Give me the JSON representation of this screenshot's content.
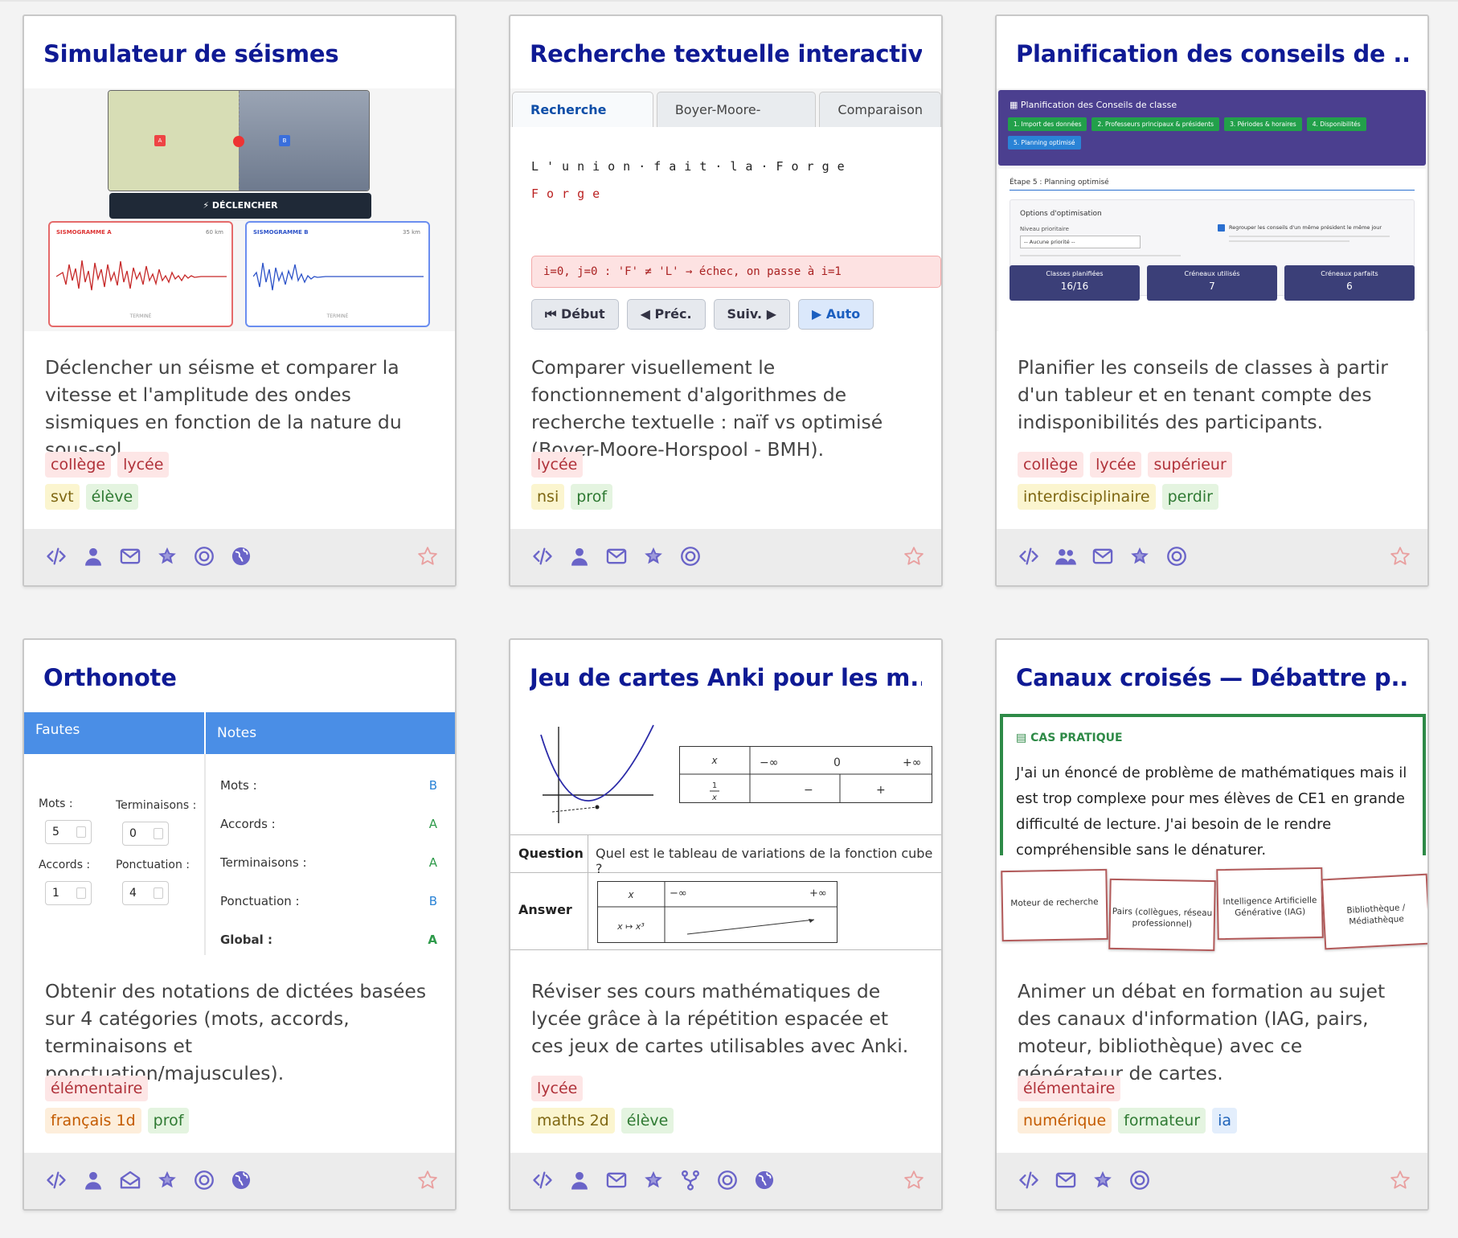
{
  "cards": [
    {
      "title": "Simulateur de séismes",
      "description": "Déclencher un séisme et comparer la vitesse et l'amplitude des ondes sismiques en fonction de la nature du sous-sol.",
      "tag_row1": [
        "collège",
        "lycée"
      ],
      "tag_row2": [
        "svt",
        "élève"
      ],
      "preview": {
        "marker_a": "A",
        "marker_b": "B",
        "button": "⚡ DÉCLENCHER",
        "gram_a_title": "SISMOGRAMME A",
        "gram_a_dist": "60 km",
        "gram_b_title": "SISMOGRAMME B",
        "gram_b_dist": "35 km",
        "gram_status": "TERMINÉ"
      },
      "footer_icons": [
        "code-icon",
        "person-icon",
        "mail-icon",
        "star-badge-icon",
        "target-icon",
        "globe-icon"
      ]
    },
    {
      "title": "Recherche textuelle interactive",
      "description": "Comparer visuellement le fonctionnement d'algorithmes de recherche textuelle : naïf vs optimisé (Boyer-Moore-Horspool - BMH).",
      "tag_row1": [
        "lycée"
      ],
      "tag_row2": [
        "nsi",
        "prof"
      ],
      "preview": {
        "tabs": [
          "Recherche Naïve",
          "Boyer-Moore-Horspool",
          "Comparaison"
        ],
        "text_line": "L'union·fait·la·Forge",
        "pattern_line": "Forge",
        "log": "i=0, j=0 : 'F' ≠ 'L' → échec, on passe à i=1",
        "buttons": [
          "⏮ Début",
          "◀ Préc.",
          "Suiv. ▶",
          "▶ Auto"
        ]
      },
      "footer_icons": [
        "code-icon",
        "person-icon",
        "mail-icon",
        "star-badge-icon",
        "target-icon"
      ]
    },
    {
      "title": "Planification des conseils de ...",
      "description": "Planifier les conseils de classes à partir d'un tableur et en tenant compte des indisponibilités des participants.",
      "tag_row1": [
        "collège",
        "lycée",
        "supérieur"
      ],
      "tag_row2": [
        "interdisciplinaire",
        "perdir"
      ],
      "preview": {
        "header": "▦ Planification des Conseils de classe",
        "steps": [
          "1. Import des données",
          "2. Professeurs principaux & présidents",
          "3. Périodes & horaires",
          "4. Disponibilités",
          "5. Planning optimisé"
        ],
        "step_title": "Étape 5 : Planning optimisé",
        "options_title": "Options d'optimisation",
        "priority_label": "Niveau prioritaire",
        "priority_value": "-- Aucune priorité --",
        "checkbox_label": "Regrouper les conseils d'un même président le même jour",
        "stats": [
          {
            "label": "Classes planifiées",
            "value": "16/16"
          },
          {
            "label": "Créneaux utilisés",
            "value": "7"
          },
          {
            "label": "Créneaux parfaits",
            "value": "6"
          }
        ]
      },
      "footer_icons": [
        "code-icon",
        "people-icon",
        "mail-icon",
        "star-badge-icon",
        "target-icon"
      ]
    },
    {
      "title": "Orthonote",
      "description": "Obtenir des notations de dictées basées sur 4 catégories (mots, accords, terminaisons et ponctuation/majuscules).",
      "tag_row1": [
        "élémentaire"
      ],
      "tag_row2": [
        "français 1d",
        "prof"
      ],
      "preview": {
        "col_faults": "Fautes",
        "col_notes": "Notes",
        "fields": [
          {
            "label": "Mots :",
            "value": "5"
          },
          {
            "label": "Terminaisons :",
            "value": "0"
          },
          {
            "label": "Accords :",
            "value": "1"
          },
          {
            "label": "Ponctuation :",
            "value": "4"
          }
        ],
        "notes": [
          {
            "label": "Mots :",
            "grade": "B"
          },
          {
            "label": "Accords :",
            "grade": "A"
          },
          {
            "label": "Terminaisons :",
            "grade": "A"
          },
          {
            "label": "Ponctuation :",
            "grade": "B"
          },
          {
            "label": "Global :",
            "grade": "A"
          }
        ]
      },
      "footer_icons": [
        "code-icon",
        "person-icon",
        "mail-open-icon",
        "star-badge-icon",
        "target-icon",
        "globe-icon"
      ]
    },
    {
      "title": "Jeu de cartes Anki pour les m...",
      "description": "Réviser ses cours mathématiques de lycée grâce à la répétition espacée et ces jeux de cartes utilisables avec Anki.",
      "tag_row1": [
        "lycée"
      ],
      "tag_row2": [
        "maths 2d",
        "élève"
      ],
      "preview": {
        "question_label": "Question",
        "question": "Quel est le tableau de variations de la fonction cube ?",
        "answer_label": "Answer",
        "minus_inf": "−∞",
        "zero": "0",
        "plus_inf": "+∞",
        "minus": "−",
        "plus": "+"
      },
      "footer_icons": [
        "code-icon",
        "person-icon",
        "mail-icon",
        "star-badge-icon",
        "fork-icon",
        "target-icon",
        "globe-icon"
      ]
    },
    {
      "title": "Canaux croisés — Débattre p...",
      "description": "Animer un débat en formation au sujet des canaux d'information (IAG, pairs, moteur, bibliothèque) avec ce générateur de cartes.",
      "tag_row1": [
        "élémentaire"
      ],
      "tag_row2": [
        "numérique",
        "formateur",
        "ia"
      ],
      "preview": {
        "case_label": "▤ CAS PRATIQUE",
        "case_text": "J'ai un énoncé de problème de mathématiques mais il est trop complexe pour mes élèves de CE1 en grande difficulté de lecture. J'ai besoin de le rendre compréhensible sans le dénaturer.",
        "channel_cards": [
          "Moteur de recherche",
          "Pairs (collègues, réseau professionnel)",
          "Intelligence Artificielle Générative (IAG)",
          "Bibliothèque / Médiathèque"
        ]
      },
      "footer_icons": [
        "code-icon",
        "mail-icon",
        "star-badge-icon",
        "target-icon"
      ]
    }
  ],
  "colors": {
    "title": "#0f1a94",
    "icon": "#6a64c8",
    "star_outline": "#e9a0a0"
  }
}
